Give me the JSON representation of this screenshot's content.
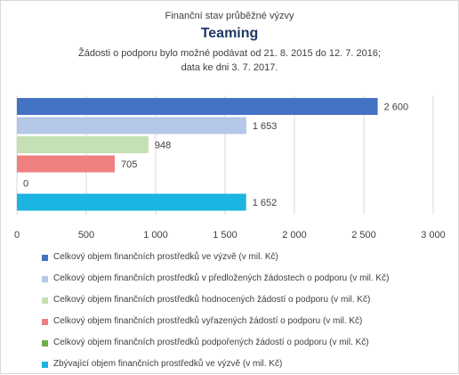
{
  "chart_data": {
    "type": "bar",
    "orientation": "horizontal",
    "title_line1": "Finanční stav průběžné výzvy",
    "title": "Teaming",
    "subtitle_line1": "Žádosti o podporu bylo možné  podávat od 21. 8. 2015 do 12. 7. 2016;",
    "subtitle_line2": "data ke dni 3. 7. 2017.",
    "xlim": [
      0,
      3000
    ],
    "xticks": [
      0,
      500,
      1000,
      1500,
      2000,
      2500,
      3000
    ],
    "xtick_labels": [
      "0",
      "500",
      "1 000",
      "1 500",
      "2 000",
      "2 500",
      "3 000"
    ],
    "grid": "vertical",
    "legend_position": "bottom",
    "series": [
      {
        "name": "Celkový objem finančních prostředků ve výzvě (v mil. Kč)",
        "value": 2600,
        "label": "2 600",
        "color": "#4472c4"
      },
      {
        "name": "Celkový objem finančních prostředků v předložených žádostech o podporu (v mil. Kč)",
        "value": 1653,
        "label": "1 653",
        "color": "#b4c7e7"
      },
      {
        "name": "Celkový objem finančních prostředků hodnocených žádostí o podporu (v mil. Kč)",
        "value": 948,
        "label": "948",
        "color": "#c5e0b4"
      },
      {
        "name": "Celkový objem finančních prostředků vyřazených žádostí o podporu (v mil. Kč)",
        "value": 705,
        "label": "705",
        "color": "#f08080"
      },
      {
        "name": "Celkový objem finančních prostředků podpořených žádostí o podporu (v mil. Kč)",
        "value": 0,
        "label": "0",
        "color": "#70ad47"
      },
      {
        "name": "Zbývající objem finančních prostředků ve výzvě (v mil. Kč)",
        "value": 1652,
        "label": "1 652",
        "color": "#1cb4e0"
      }
    ]
  }
}
